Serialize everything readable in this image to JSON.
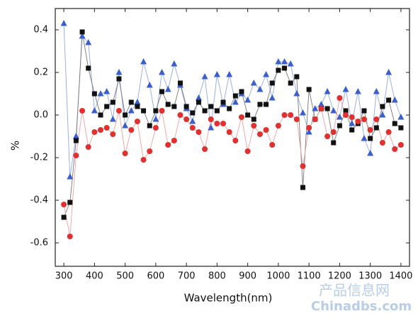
{
  "chart_data": {
    "type": "scatter-line",
    "xlabel": "Wavelength(nm)",
    "ylabel": "%",
    "xlim": [
      272,
      1428
    ],
    "ylim": [
      -0.71,
      0.5
    ],
    "xticks": [
      300,
      400,
      500,
      600,
      700,
      800,
      900,
      1000,
      1100,
      1200,
      1300,
      1400
    ],
    "yticks": [
      -0.6,
      -0.4,
      -0.2,
      {
        "value": 0,
        "label": "0.0"
      },
      0.2,
      0.4
    ],
    "x": [
      300,
      320,
      340,
      360,
      380,
      400,
      420,
      440,
      460,
      480,
      500,
      520,
      540,
      560,
      580,
      600,
      620,
      640,
      660,
      680,
      700,
      720,
      740,
      760,
      780,
      800,
      820,
      840,
      860,
      880,
      900,
      920,
      940,
      960,
      980,
      1000,
      1020,
      1040,
      1060,
      1080,
      1100,
      1120,
      1140,
      1160,
      1180,
      1200,
      1220,
      1240,
      1260,
      1280,
      1300,
      1320,
      1340,
      1360,
      1380,
      1400
    ],
    "series": [
      {
        "color": "#3a5fcd",
        "line_color": "#8fa8e8",
        "marker": "triangle",
        "values": [
          0.43,
          -0.29,
          -0.1,
          0.37,
          0.34,
          0.02,
          0.1,
          0.11,
          -0.02,
          0.2,
          -0.05,
          0.02,
          0.06,
          0.25,
          0.14,
          -0.02,
          0.2,
          0.12,
          0.24,
          0.14,
          0.03,
          -0.03,
          0.08,
          0.18,
          -0.06,
          0.19,
          0.05,
          0.19,
          0.06,
          0.1,
          0.07,
          0.15,
          0.12,
          0.19,
          0.08,
          0.25,
          0.25,
          0.24,
          0.1,
          0.01,
          -0.08,
          0.03,
          0.05,
          0.11,
          0.02,
          -0.01,
          0.12,
          -0.04,
          0.11,
          -0.11,
          -0.18,
          0.11,
          0.0,
          0.2,
          0.07,
          -0.01
        ]
      },
      {
        "color": "#111111",
        "line_color": "#777777",
        "marker": "square",
        "values": [
          -0.48,
          -0.41,
          -0.12,
          0.39,
          0.22,
          0.1,
          0.0,
          0.04,
          0.06,
          0.17,
          0.0,
          0.06,
          0.04,
          0.02,
          -0.05,
          0.02,
          0.11,
          0.05,
          0.04,
          0.15,
          0.04,
          0.01,
          0.06,
          0.02,
          0.04,
          0.02,
          0.06,
          0.03,
          0.09,
          0.11,
          0.0,
          -0.02,
          0.05,
          0.05,
          0.15,
          0.21,
          0.22,
          0.15,
          0.18,
          -0.34,
          0.12,
          -0.02,
          0.03,
          0.03,
          -0.13,
          -0.05,
          0.02,
          -0.07,
          -0.04,
          0.02,
          -0.11,
          -0.06,
          0.04,
          0.07,
          -0.04,
          -0.06
        ]
      },
      {
        "color": "#e03030",
        "line_color": "#f0a0a0",
        "marker": "circle",
        "values": [
          -0.42,
          -0.57,
          -0.19,
          0.02,
          -0.15,
          -0.08,
          -0.07,
          -0.06,
          -0.09,
          0.02,
          -0.18,
          -0.07,
          -0.03,
          -0.21,
          -0.17,
          -0.06,
          0.02,
          -0.14,
          -0.12,
          0.0,
          -0.02,
          -0.06,
          -0.08,
          -0.16,
          -0.02,
          -0.04,
          -0.04,
          -0.08,
          -0.12,
          -0.01,
          -0.17,
          -0.05,
          -0.09,
          -0.07,
          -0.14,
          -0.05,
          0.0,
          0.0,
          -0.02,
          -0.24,
          -0.06,
          -0.02,
          0.03,
          -0.1,
          -0.08,
          0.08,
          0.0,
          -0.01,
          -0.03,
          -0.02,
          -0.07,
          -0.02,
          -0.13,
          -0.08,
          -0.16,
          -0.14
        ]
      }
    ],
    "watermark": [
      "产品信息网",
      "Chinadbs.com"
    ]
  }
}
